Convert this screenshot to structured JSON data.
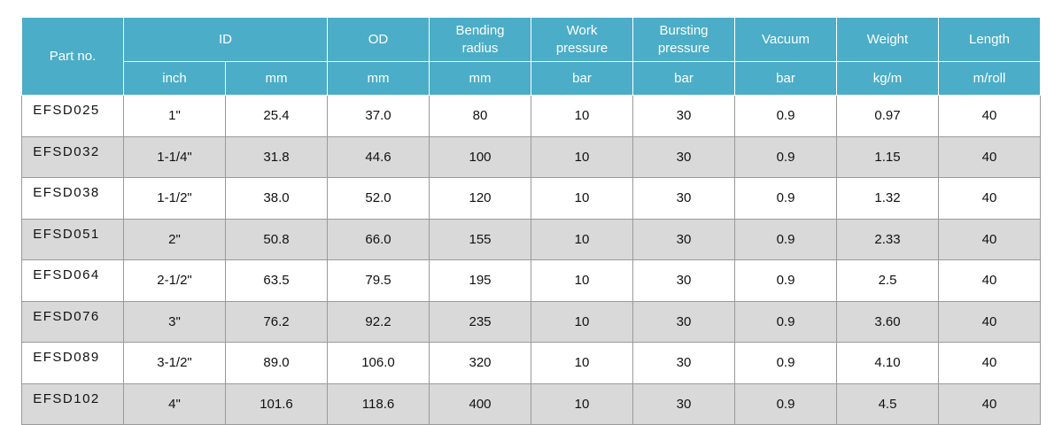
{
  "table": {
    "header_row1": [
      "Part no.",
      "ID",
      "OD",
      "Bending radius",
      "Work pressure",
      "Bursting pressure",
      "Vacuum",
      "Weight",
      "Length"
    ],
    "header_row2": [
      "inch",
      "mm",
      "mm",
      "mm",
      "bar",
      "bar",
      "bar",
      "kg/m",
      "m/roll"
    ],
    "rows": [
      [
        "EFSD025",
        "1\"",
        "25.4",
        "37.0",
        "80",
        "10",
        "30",
        "0.9",
        "0.97",
        "40"
      ],
      [
        "EFSD032",
        "1-1/4\"",
        "31.8",
        "44.6",
        "100",
        "10",
        "30",
        "0.9",
        "1.15",
        "40"
      ],
      [
        "EFSD038",
        "1-1/2\"",
        "38.0",
        "52.0",
        "120",
        "10",
        "30",
        "0.9",
        "1.32",
        "40"
      ],
      [
        "EFSD051",
        "2\"",
        "50.8",
        "66.0",
        "155",
        "10",
        "30",
        "0.9",
        "2.33",
        "40"
      ],
      [
        "EFSD064",
        "2-1/2\"",
        "63.5",
        "79.5",
        "195",
        "10",
        "30",
        "0.9",
        "2.5",
        "40"
      ],
      [
        "EFSD076",
        "3\"",
        "76.2",
        "92.2",
        "235",
        "10",
        "30",
        "0.9",
        "3.60",
        "40"
      ],
      [
        "EFSD089",
        "3-1/2\"",
        "89.0",
        "106.0",
        "320",
        "10",
        "30",
        "0.9",
        "4.10",
        "40"
      ],
      [
        "EFSD102",
        "4\"",
        "101.6",
        "118.6",
        "400",
        "10",
        "30",
        "0.9",
        "4.5",
        "40"
      ]
    ]
  }
}
